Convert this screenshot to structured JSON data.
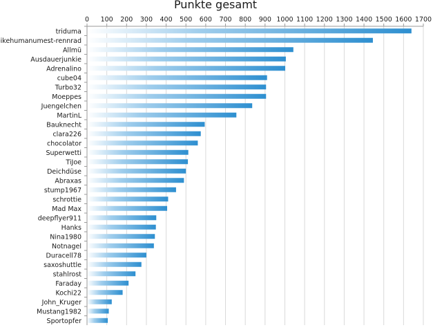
{
  "chart_data": {
    "type": "bar",
    "orientation": "horizontal",
    "title": "Punkte gesamt",
    "xlabel": "",
    "ylabel": "",
    "xlim": [
      0,
      1700
    ],
    "x_ticks": [
      0,
      100,
      200,
      300,
      400,
      500,
      600,
      700,
      800,
      900,
      1000,
      1100,
      1200,
      1300,
      1400,
      1500,
      1600,
      1700
    ],
    "axis_position": "top",
    "grid": true,
    "legend": false,
    "bar_color": "#2e8fd0",
    "bar_fill": "gradient",
    "categories": [
      "triduma",
      "bikehumanumest-rennrad",
      "Allmü",
      "Ausdauerjunkie",
      "Adrenalino",
      "cube04",
      "Turbo32",
      "Moeppes",
      "Juengelchen",
      "MartinL",
      "Bauknecht",
      "clara226",
      "chocolator",
      "Superwetti",
      "TiJoe",
      "Deichdüse",
      "Abraxas",
      "stump1967",
      "schrottie",
      "Mad Max",
      "deepflyer911",
      "Hanks",
      "Nina1980",
      "Notnagel",
      "Duracell78",
      "saxoshuttle",
      "stahlrost",
      "Faraday",
      "Kochi22",
      "John_Kruger",
      "Mustang1982",
      "Sportopfer"
    ],
    "values": [
      1640,
      1445,
      1043,
      1005,
      1002,
      910,
      905,
      905,
      835,
      755,
      595,
      575,
      560,
      512,
      510,
      500,
      490,
      450,
      410,
      405,
      350,
      348,
      343,
      338,
      300,
      275,
      245,
      210,
      180,
      125,
      110,
      105
    ]
  }
}
